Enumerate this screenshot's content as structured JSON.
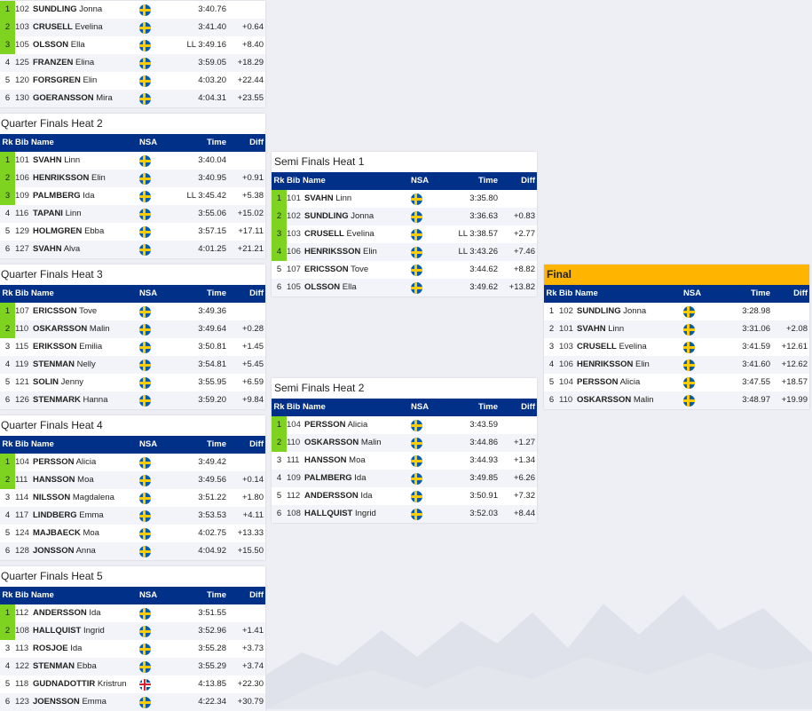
{
  "columns": {
    "rk": "Rk",
    "bib_name": "Bib Name",
    "nsa": "NSA",
    "time": "Time",
    "diff": "Diff"
  },
  "colors": {
    "header_bg": "#003087",
    "qualified": "#7ed321",
    "final_title": "#ffb400"
  },
  "heats": [
    {
      "title": "",
      "rows": [
        {
          "rk": "1",
          "q": true,
          "bib": "102",
          "last": "SUNDLING",
          "first": "Jonna",
          "nsa": "flag-swe",
          "time": "3:40.76",
          "diff": ""
        },
        {
          "rk": "2",
          "q": true,
          "bib": "103",
          "last": "CRUSELL",
          "first": "Evelina",
          "nsa": "flag-swe",
          "time": "3:41.40",
          "diff": "+0.64"
        },
        {
          "rk": "3",
          "q": true,
          "bib": "105",
          "last": "OLSSON",
          "first": "Ella",
          "nsa": "flag-swe",
          "time": "LL 3:49.16",
          "diff": "+8.40"
        },
        {
          "rk": "4",
          "q": false,
          "bib": "125",
          "last": "FRANZEN",
          "first": "Elina",
          "nsa": "flag-swe",
          "time": "3:59.05",
          "diff": "+18.29"
        },
        {
          "rk": "5",
          "q": false,
          "bib": "120",
          "last": "FORSGREN",
          "first": "Elin",
          "nsa": "flag-swe",
          "time": "4:03.20",
          "diff": "+22.44"
        },
        {
          "rk": "6",
          "q": false,
          "bib": "130",
          "last": "GOERANSSON",
          "first": "Mira",
          "nsa": "flag-swe",
          "time": "4:04.31",
          "diff": "+23.55"
        }
      ]
    },
    {
      "title": "Quarter Finals Heat 2",
      "rows": [
        {
          "rk": "1",
          "q": true,
          "bib": "101",
          "last": "SVAHN",
          "first": "Linn",
          "nsa": "flag-swe",
          "time": "3:40.04",
          "diff": ""
        },
        {
          "rk": "2",
          "q": true,
          "bib": "106",
          "last": "HENRIKSSON",
          "first": "Elin",
          "nsa": "flag-swe",
          "time": "3:40.95",
          "diff": "+0.91"
        },
        {
          "rk": "3",
          "q": true,
          "bib": "109",
          "last": "PALMBERG",
          "first": "Ida",
          "nsa": "flag-swe",
          "time": "LL 3:45.42",
          "diff": "+5.38"
        },
        {
          "rk": "4",
          "q": false,
          "bib": "116",
          "last": "TAPANI",
          "first": "Linn",
          "nsa": "flag-swe",
          "time": "3:55.06",
          "diff": "+15.02"
        },
        {
          "rk": "5",
          "q": false,
          "bib": "129",
          "last": "HOLMGREN",
          "first": "Ebba",
          "nsa": "flag-swe",
          "time": "3:57.15",
          "diff": "+17.11"
        },
        {
          "rk": "6",
          "q": false,
          "bib": "127",
          "last": "SVAHN",
          "first": "Alva",
          "nsa": "flag-swe",
          "time": "4:01.25",
          "diff": "+21.21"
        }
      ]
    },
    {
      "title": "Quarter Finals Heat 3",
      "rows": [
        {
          "rk": "1",
          "q": true,
          "bib": "107",
          "last": "ERICSSON",
          "first": "Tove",
          "nsa": "flag-swe",
          "time": "3:49.36",
          "diff": ""
        },
        {
          "rk": "2",
          "q": true,
          "bib": "110",
          "last": "OSKARSSON",
          "first": "Malin",
          "nsa": "flag-swe",
          "time": "3:49.64",
          "diff": "+0.28"
        },
        {
          "rk": "3",
          "q": false,
          "bib": "115",
          "last": "ERIKSSON",
          "first": "Emilia",
          "nsa": "flag-swe",
          "time": "3:50.81",
          "diff": "+1.45"
        },
        {
          "rk": "4",
          "q": false,
          "bib": "119",
          "last": "STENMAN",
          "first": "Nelly",
          "nsa": "flag-swe",
          "time": "3:54.81",
          "diff": "+5.45"
        },
        {
          "rk": "5",
          "q": false,
          "bib": "121",
          "last": "SOLIN",
          "first": "Jenny",
          "nsa": "flag-swe",
          "time": "3:55.95",
          "diff": "+6.59"
        },
        {
          "rk": "6",
          "q": false,
          "bib": "126",
          "last": "STENMARK",
          "first": "Hanna",
          "nsa": "flag-swe",
          "time": "3:59.20",
          "diff": "+9.84"
        }
      ]
    },
    {
      "title": "Quarter Finals Heat 4",
      "rows": [
        {
          "rk": "1",
          "q": true,
          "bib": "104",
          "last": "PERSSON",
          "first": "Alicia",
          "nsa": "flag-swe",
          "time": "3:49.42",
          "diff": ""
        },
        {
          "rk": "2",
          "q": true,
          "bib": "111",
          "last": "HANSSON",
          "first": "Moa",
          "nsa": "flag-swe",
          "time": "3:49.56",
          "diff": "+0.14"
        },
        {
          "rk": "3",
          "q": false,
          "bib": "114",
          "last": "NILSSON",
          "first": "Magdalena",
          "nsa": "flag-swe",
          "time": "3:51.22",
          "diff": "+1.80"
        },
        {
          "rk": "4",
          "q": false,
          "bib": "117",
          "last": "LINDBERG",
          "first": "Emma",
          "nsa": "flag-swe",
          "time": "3:53.53",
          "diff": "+4.11"
        },
        {
          "rk": "5",
          "q": false,
          "bib": "124",
          "last": "MAJBAECK",
          "first": "Moa",
          "nsa": "flag-swe",
          "time": "4:02.75",
          "diff": "+13.33"
        },
        {
          "rk": "6",
          "q": false,
          "bib": "128",
          "last": "JONSSON",
          "first": "Anna",
          "nsa": "flag-swe",
          "time": "4:04.92",
          "diff": "+15.50"
        }
      ]
    },
    {
      "title": "Quarter Finals Heat 5",
      "rows": [
        {
          "rk": "1",
          "q": true,
          "bib": "112",
          "last": "ANDERSSON",
          "first": "Ida",
          "nsa": "flag-swe",
          "time": "3:51.55",
          "diff": ""
        },
        {
          "rk": "2",
          "q": true,
          "bib": "108",
          "last": "HALLQUIST",
          "first": "Ingrid",
          "nsa": "flag-swe",
          "time": "3:52.96",
          "diff": "+1.41"
        },
        {
          "rk": "3",
          "q": false,
          "bib": "113",
          "last": "ROSJOE",
          "first": "Ida",
          "nsa": "flag-swe",
          "time": "3:55.28",
          "diff": "+3.73"
        },
        {
          "rk": "4",
          "q": false,
          "bib": "122",
          "last": "STENMAN",
          "first": "Ebba",
          "nsa": "flag-swe",
          "time": "3:55.29",
          "diff": "+3.74"
        },
        {
          "rk": "5",
          "q": false,
          "bib": "118",
          "last": "GUDNADOTTIR",
          "first": "Kristrun",
          "nsa": "flag-isl",
          "time": "4:13.85",
          "diff": "+22.30"
        },
        {
          "rk": "6",
          "q": false,
          "bib": "123",
          "last": "JOENSSON",
          "first": "Emma",
          "nsa": "flag-swe",
          "time": "4:22.34",
          "diff": "+30.79"
        }
      ]
    },
    {
      "title": "Semi Finals Heat 1",
      "rows": [
        {
          "rk": "1",
          "q": true,
          "bib": "101",
          "last": "SVAHN",
          "first": "Linn",
          "nsa": "flag-swe",
          "time": "3:35.80",
          "diff": ""
        },
        {
          "rk": "2",
          "q": true,
          "bib": "102",
          "last": "SUNDLING",
          "first": "Jonna",
          "nsa": "flag-swe",
          "time": "3:36.63",
          "diff": "+0.83"
        },
        {
          "rk": "3",
          "q": true,
          "bib": "103",
          "last": "CRUSELL",
          "first": "Evelina",
          "nsa": "flag-swe",
          "time": "LL 3:38.57",
          "diff": "+2.77"
        },
        {
          "rk": "4",
          "q": true,
          "bib": "106",
          "last": "HENRIKSSON",
          "first": "Elin",
          "nsa": "flag-swe",
          "time": "LL 3:43.26",
          "diff": "+7.46"
        },
        {
          "rk": "5",
          "q": false,
          "bib": "107",
          "last": "ERICSSON",
          "first": "Tove",
          "nsa": "flag-swe",
          "time": "3:44.62",
          "diff": "+8.82"
        },
        {
          "rk": "6",
          "q": false,
          "bib": "105",
          "last": "OLSSON",
          "first": "Ella",
          "nsa": "flag-swe",
          "time": "3:49.62",
          "diff": "+13.82"
        }
      ]
    },
    {
      "title": "Semi Finals Heat 2",
      "rows": [
        {
          "rk": "1",
          "q": true,
          "bib": "104",
          "last": "PERSSON",
          "first": "Alicia",
          "nsa": "flag-swe",
          "time": "3:43.59",
          "diff": ""
        },
        {
          "rk": "2",
          "q": true,
          "bib": "110",
          "last": "OSKARSSON",
          "first": "Malin",
          "nsa": "flag-swe",
          "time": "3:44.86",
          "diff": "+1.27"
        },
        {
          "rk": "3",
          "q": false,
          "bib": "111",
          "last": "HANSSON",
          "first": "Moa",
          "nsa": "flag-swe",
          "time": "3:44.93",
          "diff": "+1.34"
        },
        {
          "rk": "4",
          "q": false,
          "bib": "109",
          "last": "PALMBERG",
          "first": "Ida",
          "nsa": "flag-swe",
          "time": "3:49.85",
          "diff": "+6.26"
        },
        {
          "rk": "5",
          "q": false,
          "bib": "112",
          "last": "ANDERSSON",
          "first": "Ida",
          "nsa": "flag-swe",
          "time": "3:50.91",
          "diff": "+7.32"
        },
        {
          "rk": "6",
          "q": false,
          "bib": "108",
          "last": "HALLQUIST",
          "first": "Ingrid",
          "nsa": "flag-swe",
          "time": "3:52.03",
          "diff": "+8.44"
        }
      ]
    },
    {
      "title": "Final",
      "rows": [
        {
          "rk": "1",
          "q": false,
          "bib": "102",
          "last": "SUNDLING",
          "first": "Jonna",
          "nsa": "flag-swe",
          "time": "3:28.98",
          "diff": ""
        },
        {
          "rk": "2",
          "q": false,
          "bib": "101",
          "last": "SVAHN",
          "first": "Linn",
          "nsa": "flag-swe",
          "time": "3:31.06",
          "diff": "+2.08"
        },
        {
          "rk": "3",
          "q": false,
          "bib": "103",
          "last": "CRUSELL",
          "first": "Evelina",
          "nsa": "flag-swe",
          "time": "3:41.59",
          "diff": "+12.61"
        },
        {
          "rk": "4",
          "q": false,
          "bib": "106",
          "last": "HENRIKSSON",
          "first": "Elin",
          "nsa": "flag-swe",
          "time": "3:41.60",
          "diff": "+12.62"
        },
        {
          "rk": "5",
          "q": false,
          "bib": "104",
          "last": "PERSSON",
          "first": "Alicia",
          "nsa": "flag-swe",
          "time": "3:47.55",
          "diff": "+18.57"
        },
        {
          "rk": "6",
          "q": false,
          "bib": "110",
          "last": "OSKARSSON",
          "first": "Malin",
          "nsa": "flag-swe",
          "time": "3:48.97",
          "diff": "+19.99"
        }
      ]
    }
  ]
}
